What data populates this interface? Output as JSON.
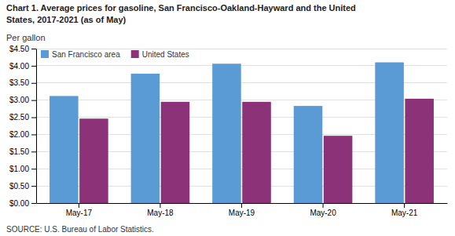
{
  "chart_data": {
    "type": "bar",
    "title": "Chart 1. Average prices for gasoline, San Francisco-Oakland-Hayward and the United\nStates, 2017-2021  (as of May)",
    "y_label": "Per gallon",
    "source": "SOURCE: U.S. Bureau of Labor Statistics.",
    "categories": [
      "May-17",
      "May-18",
      "May-19",
      "May-20",
      "May-21"
    ],
    "series": [
      {
        "name": "San Francisco area",
        "color": "#5B9BD5",
        "values": [
          3.12,
          3.77,
          4.06,
          2.83,
          4.1
        ]
      },
      {
        "name": "United States",
        "color": "#8B3278",
        "values": [
          2.46,
          2.95,
          2.95,
          1.96,
          3.04
        ]
      }
    ],
    "ylim": [
      0,
      4.5
    ],
    "yticks": [
      {
        "value": 0.0,
        "label": "$0.00"
      },
      {
        "value": 0.5,
        "label": "$0.50"
      },
      {
        "value": 1.0,
        "label": "$1.00"
      },
      {
        "value": 1.5,
        "label": "$1.50"
      },
      {
        "value": 2.0,
        "label": "$2.00"
      },
      {
        "value": 2.5,
        "label": "$2.50"
      },
      {
        "value": 3.0,
        "label": "$3.00"
      },
      {
        "value": 3.5,
        "label": "$3.50"
      },
      {
        "value": 4.0,
        "label": "$4.00"
      },
      {
        "value": 4.5,
        "label": "$4.50"
      }
    ],
    "grid": true,
    "legend": "upper left"
  }
}
